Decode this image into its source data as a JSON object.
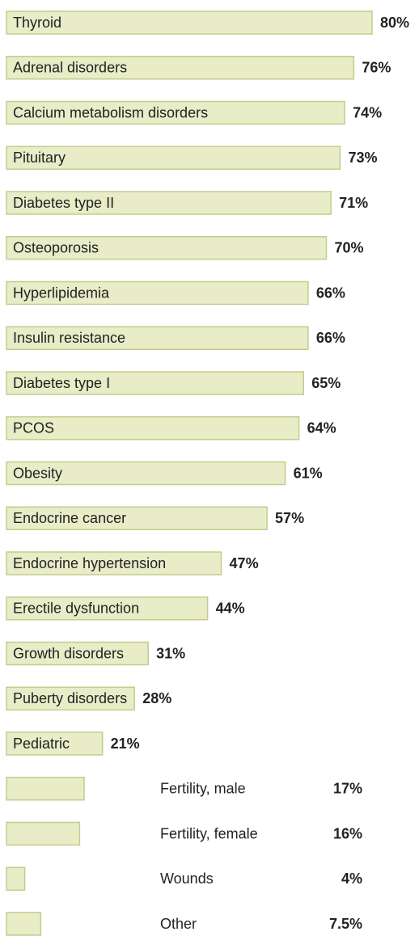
{
  "chart_data": {
    "type": "bar",
    "orientation": "horizontal",
    "color": "#e8ecc7",
    "edge_color": "#c5cc8e",
    "categories": [
      "Thyroid",
      "Adrenal disorders",
      "Calcium metabolism disorders",
      "Pituitary",
      "Diabetes type II",
      "Osteoporosis",
      "Hyperlipidemia",
      "Insulin resistance",
      "Diabetes type I",
      "PCOS",
      "Obesity",
      "Endocrine cancer",
      "Endocrine hypertension",
      "Erectile dysfunction",
      "Growth disorders",
      "Puberty disorders",
      "Pediatric",
      "Fertility, male",
      "Fertility, female",
      "Wounds",
      "Other"
    ],
    "values": [
      80,
      76,
      74,
      73,
      71,
      70,
      66,
      66,
      65,
      64,
      61,
      57,
      47,
      44,
      31,
      28,
      21,
      17,
      16,
      4,
      7.5
    ],
    "value_labels": [
      "80%",
      "76%",
      "74%",
      "73%",
      "71%",
      "70%",
      "66%",
      "66%",
      "65%",
      "64%",
      "61%",
      "57%",
      "47%",
      "44%",
      "31%",
      "28%",
      "21%",
      "17%",
      "16%",
      "4%",
      "7.5%"
    ]
  }
}
